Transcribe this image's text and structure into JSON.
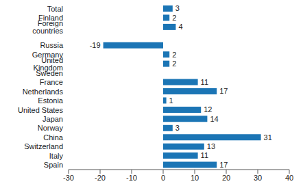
{
  "chart_data": {
    "type": "bar",
    "orientation": "horizontal",
    "categories": [
      "Total",
      "Finland",
      "Foreign countries",
      null,
      "Russia",
      "Germany",
      "United Kingdom",
      "Sweden",
      "France",
      "Netherlands",
      "Estonia",
      "United States",
      "Japan",
      "Norway",
      "China",
      "Switzerland",
      "Italy",
      "Spain"
    ],
    "values": [
      3,
      2,
      4,
      null,
      -19,
      2,
      2,
      0,
      11,
      17,
      1,
      12,
      14,
      3,
      31,
      13,
      11,
      17
    ],
    "color": "#1b75b5",
    "xlim": [
      -30,
      40
    ],
    "xticks": [
      -30,
      -20,
      -10,
      0,
      10,
      20,
      30,
      40
    ],
    "grid": false,
    "data_labels": true
  }
}
